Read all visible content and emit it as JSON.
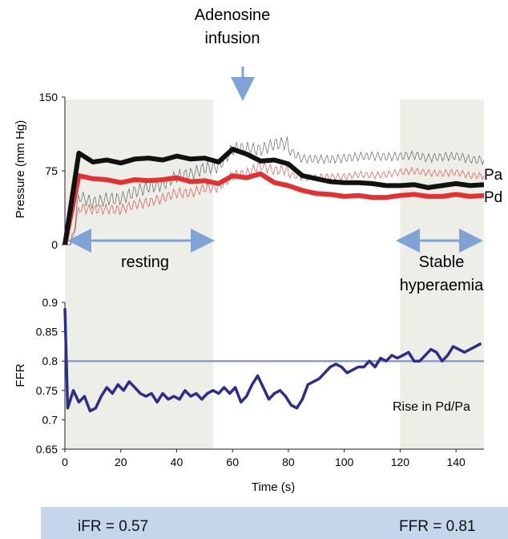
{
  "annotations": {
    "adenosine_line1": "Adenosine",
    "adenosine_line2": "infusion",
    "resting": "resting",
    "stable_line1": "Stable",
    "stable_line2": "hyperaemia",
    "rise": "Rise in Pd/Pa"
  },
  "footer": {
    "ifr": "iFR = 0.57",
    "ffr": "FFR = 0.81"
  },
  "colors": {
    "pa_thick": "#111111",
    "pa_raw": "#333333",
    "pd_thick": "#e33030",
    "pd_raw": "#e04848",
    "ffr_line": "#2c2e8a",
    "threshold": "#7ea3d4",
    "shade": "#eeeee8",
    "arrow": "#7ea3d4",
    "footer_bg": "#c5d5ea"
  },
  "chart_data": [
    {
      "type": "line",
      "ylabel": "Pressure (mm Hg)",
      "xlim": [
        0,
        150
      ],
      "ylim": [
        0,
        150
      ],
      "yticks": [
        0,
        75,
        150
      ],
      "shaded_regions": [
        [
          0,
          53
        ],
        [
          120,
          150
        ]
      ],
      "series": [
        {
          "name": "Pa",
          "x": [
            0,
            5,
            10,
            15,
            20,
            25,
            30,
            35,
            40,
            45,
            50,
            55,
            60,
            65,
            70,
            75,
            80,
            85,
            90,
            95,
            100,
            105,
            110,
            115,
            120,
            125,
            130,
            135,
            140,
            145,
            150
          ],
          "values": [
            0,
            93,
            84,
            86,
            83,
            87,
            88,
            86,
            90,
            87,
            88,
            84,
            97,
            92,
            85,
            86,
            82,
            70,
            67,
            64,
            63,
            63,
            62,
            60,
            60,
            61,
            58,
            60,
            62,
            60,
            61
          ]
        },
        {
          "name": "Pd",
          "x": [
            0,
            5,
            10,
            15,
            20,
            25,
            30,
            35,
            40,
            45,
            50,
            55,
            60,
            65,
            70,
            75,
            80,
            85,
            90,
            95,
            100,
            105,
            110,
            115,
            120,
            125,
            130,
            135,
            140,
            145,
            150
          ],
          "values": [
            0,
            70,
            67,
            66,
            63,
            66,
            65,
            66,
            68,
            64,
            65,
            62,
            70,
            68,
            72,
            63,
            60,
            55,
            52,
            51,
            49,
            50,
            48,
            48,
            50,
            51,
            49,
            49,
            51,
            49,
            50
          ]
        }
      ]
    },
    {
      "type": "line",
      "xlabel": "Time (s)",
      "ylabel": "FFR",
      "xlim": [
        0,
        150
      ],
      "ylim": [
        0.65,
        0.9
      ],
      "xticks": [
        0,
        20,
        40,
        60,
        80,
        100,
        120,
        140
      ],
      "yticks": [
        0.65,
        0.7,
        0.75,
        0.8,
        0.85,
        0.9
      ],
      "threshold": 0.8,
      "shaded_regions": [
        [
          0,
          53
        ],
        [
          120,
          150
        ]
      ],
      "series": [
        {
          "name": "Pd/Pa",
          "x": [
            0,
            1,
            3,
            5,
            7,
            9,
            11,
            13,
            15,
            17,
            19,
            21,
            23,
            25,
            27,
            29,
            31,
            33,
            35,
            37,
            39,
            41,
            43,
            45,
            47,
            49,
            51,
            53,
            55,
            57,
            59,
            61,
            63,
            65,
            67,
            69,
            71,
            73,
            75,
            77,
            79,
            81,
            83,
            85,
            87,
            89,
            91,
            93,
            95,
            97,
            99,
            101,
            103,
            105,
            107,
            109,
            111,
            113,
            115,
            117,
            119,
            121,
            123,
            125,
            127,
            129,
            131,
            133,
            135,
            137,
            139,
            141,
            143,
            145,
            147,
            149
          ],
          "values": [
            0.89,
            0.72,
            0.75,
            0.73,
            0.74,
            0.715,
            0.72,
            0.74,
            0.755,
            0.745,
            0.76,
            0.75,
            0.765,
            0.755,
            0.745,
            0.74,
            0.745,
            0.73,
            0.745,
            0.735,
            0.74,
            0.735,
            0.75,
            0.74,
            0.745,
            0.735,
            0.745,
            0.75,
            0.745,
            0.755,
            0.745,
            0.755,
            0.73,
            0.74,
            0.76,
            0.775,
            0.755,
            0.735,
            0.745,
            0.75,
            0.74,
            0.725,
            0.72,
            0.735,
            0.76,
            0.765,
            0.77,
            0.78,
            0.79,
            0.795,
            0.79,
            0.78,
            0.785,
            0.79,
            0.79,
            0.8,
            0.79,
            0.805,
            0.8,
            0.81,
            0.805,
            0.81,
            0.815,
            0.8,
            0.8,
            0.81,
            0.82,
            0.815,
            0.8,
            0.81,
            0.825,
            0.82,
            0.815,
            0.82,
            0.825,
            0.83
          ]
        }
      ]
    }
  ]
}
